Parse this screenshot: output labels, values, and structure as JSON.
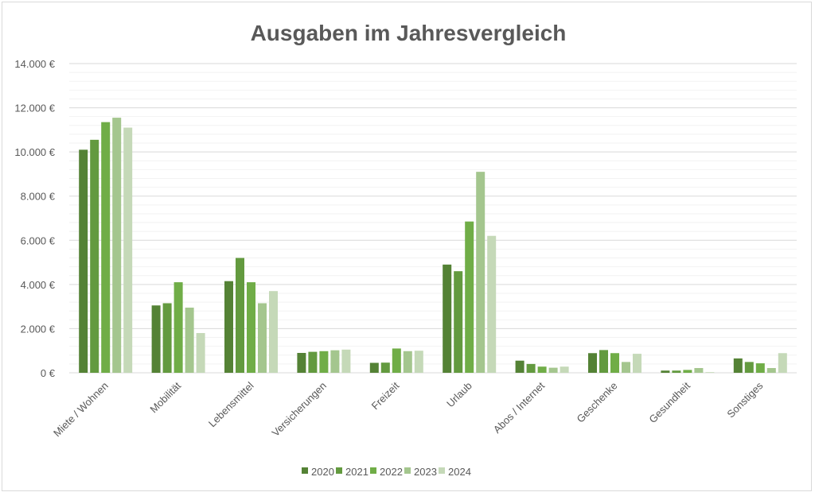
{
  "chart_data": {
    "type": "bar",
    "title": "Ausgaben im Jahresvergleich",
    "xlabel": "",
    "ylabel": "",
    "ylim": [
      0,
      14000
    ],
    "y_ticks": [
      0,
      2000,
      4000,
      6000,
      8000,
      10000,
      12000,
      14000
    ],
    "y_tick_labels": [
      "0 €",
      "2.000 €",
      "4.000 €",
      "6.000 €",
      "8.000 €",
      "10.000 €",
      "12.000 €",
      "14.000 €"
    ],
    "grid": true,
    "legend_position": "bottom",
    "categories": [
      "Miete / Wohnen",
      "Mobilität",
      "Lebensmittel",
      "Versicherungen",
      "Freizeit",
      "Urlaub",
      "Abos / Internet",
      "Geschenke",
      "Gesundheit",
      "Sonstiges"
    ],
    "series": [
      {
        "name": "2020",
        "color": "#548235",
        "values": [
          10100,
          3050,
          4150,
          900,
          450,
          4900,
          550,
          890,
          100,
          650
        ]
      },
      {
        "name": "2021",
        "color": "#639a3f",
        "values": [
          10550,
          3150,
          5200,
          950,
          460,
          4600,
          400,
          1030,
          100,
          490
        ]
      },
      {
        "name": "2022",
        "color": "#70ad47",
        "values": [
          11350,
          4100,
          4100,
          980,
          1100,
          6850,
          280,
          890,
          130,
          430
        ]
      },
      {
        "name": "2023",
        "color": "#a4c68e",
        "values": [
          11550,
          2950,
          3150,
          1020,
          980,
          9100,
          230,
          490,
          215,
          215
        ]
      },
      {
        "name": "2024",
        "color": "#c5d9b8",
        "values": [
          11100,
          1800,
          3700,
          1050,
          1000,
          6200,
          280,
          860,
          30,
          890
        ]
      }
    ]
  }
}
